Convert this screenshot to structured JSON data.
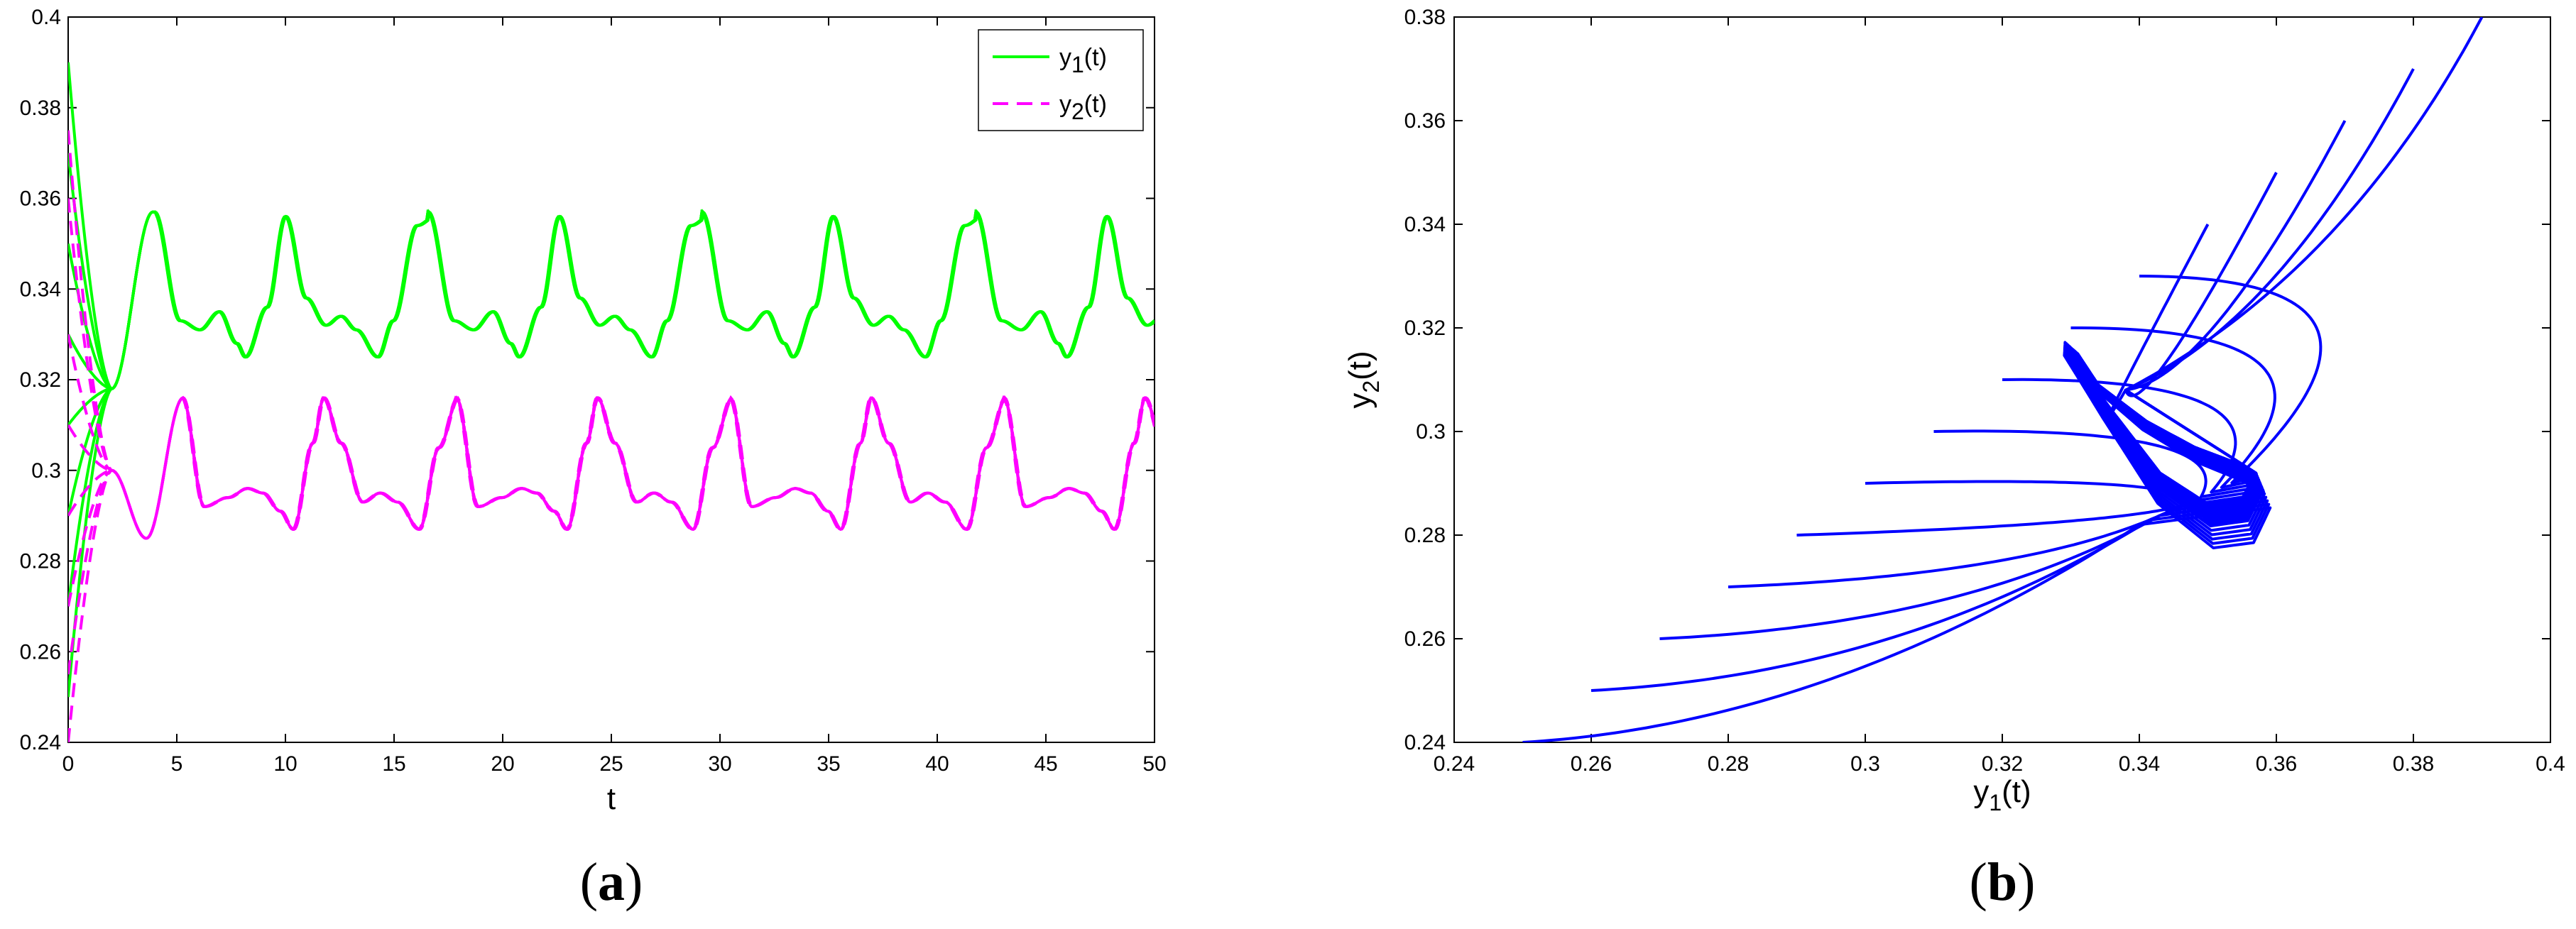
{
  "chart_data": [
    {
      "type": "line",
      "panel_label": {
        "open": "(",
        "letter": "a",
        "close": ")"
      },
      "xlabel": "t",
      "ylabel": "",
      "xlim": [
        0,
        50
      ],
      "ylim": [
        0.24,
        0.4
      ],
      "xticks": [
        "0",
        "5",
        "10",
        "15",
        "20",
        "25",
        "30",
        "35",
        "40",
        "45",
        "50"
      ],
      "yticks": [
        "0.24",
        "0.26",
        "0.28",
        "0.3",
        "0.32",
        "0.34",
        "0.36",
        "0.38",
        "0.4"
      ],
      "legend": {
        "placement": "top-right",
        "entries": [
          {
            "base": "y",
            "sub": "1",
            "rest": "(t)",
            "color": "#00ff00",
            "dash": "solid"
          },
          {
            "base": "y",
            "sub": "2",
            "rest": "(t)",
            "color": "#ff00ff",
            "dash": "dashed"
          }
        ]
      },
      "series": [
        {
          "key": "y1",
          "color": "#00ff00",
          "dash": "solid",
          "initial_values": [
            0.39,
            0.37,
            0.35,
            0.33,
            0.31,
            0.29,
            0.27,
            0.25
          ],
          "transient_converge": {
            "t": 2.0,
            "y": 0.318
          },
          "transient_peak": {
            "t": 3.9,
            "y": 0.357
          },
          "periodic": {
            "start_t": 4.0,
            "period": 6.3,
            "x": [
              4.0,
              5.2,
              6.1,
              7.0,
              7.8,
              8.2,
              9.2,
              10.05,
              11.0,
              11.9,
              12.6,
              13.3,
              14.3,
              15.0,
              16.1,
              16.95,
              17.9,
              18.8
            ],
            "y": [
              0.357,
              0.333,
              0.331,
              0.335,
              0.328,
              0.325,
              0.336,
              0.356,
              0.338,
              0.332,
              0.334,
              0.331,
              0.325,
              0.333,
              0.354,
              0.356,
              0.338,
              0.332
            ]
          }
        },
        {
          "key": "y2",
          "color": "#ff00ff",
          "dash": "dashed",
          "initial_values": [
            0.375,
            0.36,
            0.33,
            0.31,
            0.29,
            0.27,
            0.255,
            0.24
          ],
          "transient_converge": {
            "t": 2.0,
            "y": 0.3
          },
          "transient_dip": {
            "t": 3.6,
            "y": 0.285
          },
          "periodic": {
            "start_t": 5.3,
            "period": 6.3,
            "x": [
              5.3,
              6.3,
              7.4,
              8.3,
              9.0,
              9.8,
              10.4,
              11.3,
              11.8,
              12.6,
              13.6,
              14.4,
              15.2,
              16.2,
              17.1,
              18.0,
              18.8
            ],
            "y": [
              0.316,
              0.292,
              0.294,
              0.296,
              0.295,
              0.291,
              0.287,
              0.306,
              0.316,
              0.306,
              0.293,
              0.295,
              0.293,
              0.287,
              0.305,
              0.316,
              0.306
            ]
          }
        }
      ],
      "t_max": 50
    },
    {
      "type": "line",
      "panel_label": {
        "open": "(",
        "letter": "b",
        "close": ")"
      },
      "xlabel": {
        "base": "y",
        "sub": "1",
        "rest": "(t)"
      },
      "ylabel": {
        "base": "y",
        "sub": "2",
        "rest": "(t)"
      },
      "xlim": [
        0.24,
        0.4
      ],
      "ylim": [
        0.24,
        0.38
      ],
      "xticks": [
        "0.24",
        "0.26",
        "0.28",
        "0.3",
        "0.32",
        "0.34",
        "0.36",
        "0.38",
        "0.4"
      ],
      "yticks": [
        "0.24",
        "0.26",
        "0.28",
        "0.3",
        "0.32",
        "0.34",
        "0.36",
        "0.38"
      ],
      "color": "#0000ff",
      "start_points_lower": [
        [
          0.25,
          0.24
        ],
        [
          0.26,
          0.25
        ],
        [
          0.27,
          0.26
        ],
        [
          0.28,
          0.27
        ],
        [
          0.29,
          0.28
        ],
        [
          0.3,
          0.29
        ],
        [
          0.31,
          0.3
        ],
        [
          0.32,
          0.31
        ],
        [
          0.33,
          0.32
        ],
        [
          0.34,
          0.33
        ]
      ],
      "start_points_upper": [
        [
          0.35,
          0.34
        ],
        [
          0.36,
          0.35
        ],
        [
          0.37,
          0.36
        ],
        [
          0.38,
          0.37
        ],
        [
          0.39,
          0.38
        ]
      ],
      "limit_cycle": {
        "x": [
          0.357,
          0.355,
          0.35,
          0.343,
          0.336,
          0.331,
          0.331,
          0.334,
          0.341,
          0.348,
          0.354,
          0.357
        ],
        "y": [
          0.292,
          0.287,
          0.286,
          0.292,
          0.304,
          0.313,
          0.315,
          0.309,
          0.302,
          0.297,
          0.294,
          0.292
        ]
      }
    }
  ]
}
